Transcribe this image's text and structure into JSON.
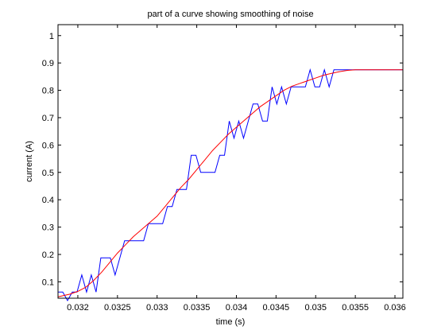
{
  "chart_data": {
    "type": "line",
    "title": "part of a curve showing smoothing of noise",
    "xlabel": "time (s)",
    "ylabel": "current (A)",
    "xlim": [
      0.03175,
      0.0361
    ],
    "ylim": [
      0.04,
      1.04
    ],
    "xticks": [
      0.032,
      0.0325,
      0.033,
      0.0335,
      0.034,
      0.0345,
      0.035,
      0.0355,
      0.036
    ],
    "xtick_labels": [
      "0.032",
      "0.0325",
      "0.033",
      "0.0335",
      "0.034",
      "0.0345",
      "0.035",
      "0.0355",
      "0.036"
    ],
    "yticks": [
      0.1,
      0.2,
      0.3,
      0.4,
      0.5,
      0.6,
      0.7,
      0.8,
      0.9,
      1.0
    ],
    "ytick_labels": [
      "0.1",
      "0.2",
      "0.3",
      "0.4",
      "0.5",
      "0.6",
      "0.7",
      "0.8",
      "0.9",
      "1"
    ],
    "grid": false,
    "box": true,
    "series": [
      {
        "style": "noisy",
        "color": "#0000ff",
        "x": [
          0.03175,
          0.03181,
          0.03187,
          0.03193,
          0.03199,
          0.03205,
          0.03211,
          0.03217,
          0.03223,
          0.03229,
          0.03235,
          0.03241,
          0.03247,
          0.03253,
          0.03259,
          0.03265,
          0.03271,
          0.03277,
          0.03283,
          0.03289,
          0.03295,
          0.03301,
          0.03307,
          0.03313,
          0.03319,
          0.03325,
          0.03331,
          0.03337,
          0.03343,
          0.03349,
          0.03355,
          0.03361,
          0.03367,
          0.03373,
          0.03379,
          0.03385,
          0.03391,
          0.03397,
          0.03403,
          0.03409,
          0.03415,
          0.03421,
          0.03427,
          0.03433,
          0.03439,
          0.03445,
          0.03451,
          0.03457,
          0.03463,
          0.03469,
          0.03475,
          0.03481,
          0.03487,
          0.03493,
          0.03499,
          0.03505,
          0.03511,
          0.03517,
          0.03523,
          0.03529,
          0.03535,
          0.03541,
          0.0361
        ],
        "y": [
          0.0625,
          0.0625,
          0.0313,
          0.0625,
          0.0625,
          0.125,
          0.0625,
          0.125,
          0.0625,
          0.1875,
          0.1875,
          0.1875,
          0.125,
          0.1875,
          0.25,
          0.25,
          0.25,
          0.25,
          0.25,
          0.3125,
          0.3125,
          0.3125,
          0.3125,
          0.375,
          0.375,
          0.4375,
          0.4375,
          0.4375,
          0.5625,
          0.5625,
          0.5,
          0.5,
          0.5,
          0.5,
          0.5625,
          0.5625,
          0.6875,
          0.625,
          0.6875,
          0.625,
          0.6875,
          0.75,
          0.75,
          0.6875,
          0.6875,
          0.8125,
          0.75,
          0.8125,
          0.75,
          0.8125,
          0.8125,
          0.8125,
          0.8125,
          0.875,
          0.8125,
          0.8125,
          0.875,
          0.8125,
          0.875,
          0.875,
          0.875,
          0.875,
          0.875
        ]
      },
      {
        "style": "smoothed",
        "color": "#ff0000",
        "x": [
          0.03175,
          0.0319,
          0.032,
          0.0321,
          0.0322,
          0.0323,
          0.0324,
          0.0325,
          0.0326,
          0.0327,
          0.0328,
          0.0329,
          0.033,
          0.0331,
          0.0332,
          0.0333,
          0.0334,
          0.0335,
          0.0336,
          0.0337,
          0.0338,
          0.0339,
          0.034,
          0.0341,
          0.0342,
          0.0343,
          0.0344,
          0.0345,
          0.0346,
          0.0347,
          0.0348,
          0.0349,
          0.035,
          0.0351,
          0.0352,
          0.0353,
          0.0354,
          0.0355,
          0.0361
        ],
        "y": [
          0.045,
          0.055,
          0.065,
          0.08,
          0.105,
          0.135,
          0.17,
          0.205,
          0.235,
          0.265,
          0.29,
          0.315,
          0.34,
          0.375,
          0.41,
          0.445,
          0.475,
          0.51,
          0.545,
          0.58,
          0.61,
          0.64,
          0.665,
          0.69,
          0.715,
          0.74,
          0.76,
          0.78,
          0.8,
          0.815,
          0.825,
          0.835,
          0.845,
          0.855,
          0.862,
          0.868,
          0.873,
          0.875,
          0.875
        ]
      }
    ]
  }
}
